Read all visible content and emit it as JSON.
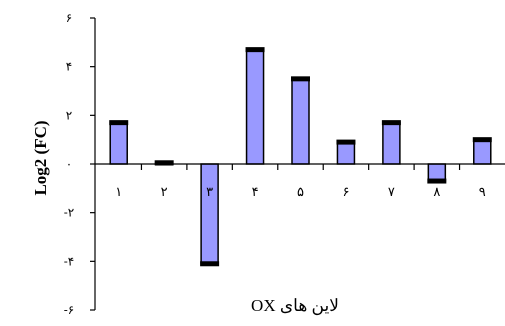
{
  "chart_data": {
    "type": "bar",
    "categories": [
      "۱",
      "۲",
      "۳",
      "۴",
      "۵",
      "۶",
      "۷",
      "۸",
      "۹"
    ],
    "values": [
      1.7,
      0.05,
      -4.1,
      4.7,
      3.5,
      0.9,
      1.7,
      -0.7,
      1.0
    ],
    "ylabel": "Log2 (FC)",
    "xlabel": "لاین های OX",
    "ylim": [
      -6,
      6
    ],
    "yticks": [
      {
        "value": 6,
        "label": "۶"
      },
      {
        "value": 4,
        "label": "۴"
      },
      {
        "value": 2,
        "label": "۲"
      },
      {
        "value": 0,
        "label": "۰"
      },
      {
        "value": -2,
        "label": "-۲"
      },
      {
        "value": -4,
        "label": "-۴"
      },
      {
        "value": -6,
        "label": "-۶"
      }
    ],
    "error_bars": true,
    "grid": false,
    "legend": "none",
    "bar_color": "#9999ff",
    "bar_border": "#000000"
  }
}
